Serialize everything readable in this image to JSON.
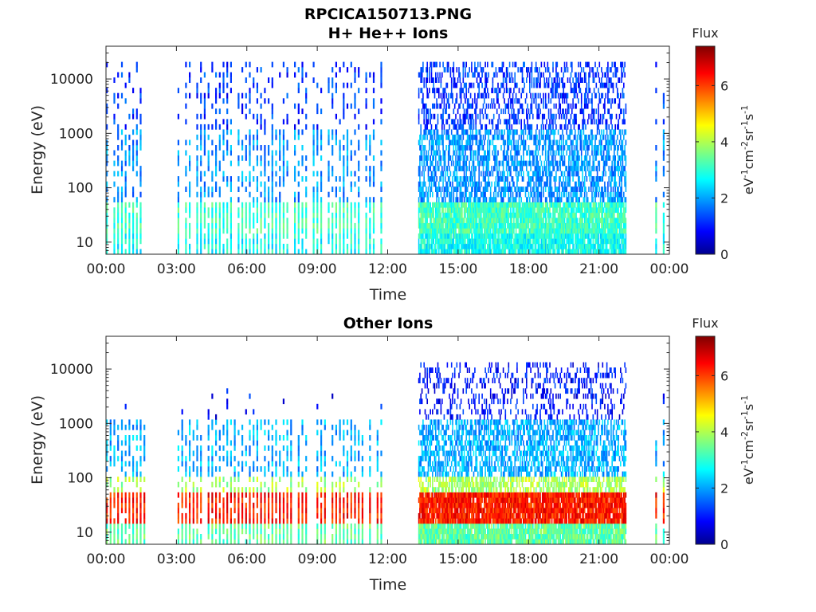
{
  "figure": {
    "title": "RPCICA150713.PNG"
  },
  "chart_data": [
    {
      "type": "heatmap",
      "title": "H+ He++ Ions",
      "xlabel": "Time",
      "ylabel": "Energy (eV)",
      "y_scale": "log",
      "x_ticks": [
        "00:00",
        "03:00",
        "06:00",
        "09:00",
        "12:00",
        "15:00",
        "18:00",
        "21:00",
        "00:00"
      ],
      "x_range_hours": [
        0,
        24
      ],
      "y_ticks": [
        10,
        100,
        1000,
        10000
      ],
      "y_tick_labels": [
        "10",
        "100",
        "1000",
        "10000"
      ],
      "ylim": [
        6,
        40000
      ],
      "data_intervals_hours": [
        [
          0,
          1.75
        ],
        [
          3.05,
          11.85
        ],
        [
          13.3,
          22.15
        ],
        [
          23.4,
          23.85
        ]
      ],
      "colorbar": {
        "title": "Flux",
        "label": "eV-1cm-2sr-1s-1",
        "range": [
          0,
          7.4
        ],
        "ticks": [
          "0",
          "2",
          "4",
          "6"
        ]
      },
      "typical_flux": {
        "low_energy_10_40eV": 3.2,
        "mid_energy_100_1000eV": 2.0,
        "high_energy_1000_20000eV": 1.3
      }
    },
    {
      "type": "heatmap",
      "title": "Other Ions",
      "xlabel": "Time",
      "ylabel": "Energy (eV)",
      "y_scale": "log",
      "x_ticks": [
        "00:00",
        "03:00",
        "06:00",
        "09:00",
        "12:00",
        "15:00",
        "18:00",
        "21:00",
        "00:00"
      ],
      "x_range_hours": [
        0,
        24
      ],
      "y_ticks": [
        10,
        100,
        1000,
        10000
      ],
      "y_tick_labels": [
        "10",
        "100",
        "1000",
        "10000"
      ],
      "ylim": [
        6,
        40000
      ],
      "data_intervals_hours": [
        [
          0,
          1.75
        ],
        [
          3.05,
          11.85
        ],
        [
          13.3,
          22.15
        ],
        [
          23.4,
          23.85
        ]
      ],
      "colorbar": {
        "title": "Flux",
        "label": "eV-1cm-2sr-1s-1",
        "range": [
          0,
          7.4
        ],
        "ticks": [
          "0",
          "2",
          "4",
          "6"
        ]
      },
      "typical_flux": {
        "peak_energy_20_45eV": 6.3,
        "energy_100eV": 4.0,
        "energy_1000eV": 2.2,
        "energy_10000eV": 1.0
      }
    }
  ],
  "colors": {
    "jet_stops": [
      "#00008f",
      "#0000ff",
      "#00ffff",
      "#ffff00",
      "#ff0000",
      "#800000"
    ],
    "axis": "#262626"
  }
}
